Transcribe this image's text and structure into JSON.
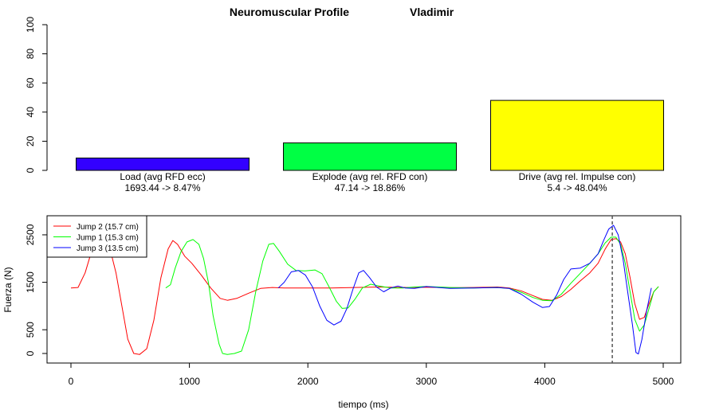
{
  "title": "Neuromuscular Profile",
  "athlete": "Vladimir",
  "chart_data": [
    {
      "type": "bar",
      "categories": [
        "Load (avg RFD ecc)",
        "Explode (avg rel. RFD con)",
        "Drive (avg rel. Impulse con)"
      ],
      "sublabels": [
        "1693.44 -> 8.47%",
        "47.14 -> 18.86%",
        "5.4 -> 48.04%"
      ],
      "values": [
        8.47,
        18.86,
        48.04
      ],
      "colors": [
        "#3300ff",
        "#00ff44",
        "#ffff00"
      ],
      "ylim": [
        0,
        100
      ],
      "yticks": [
        0,
        20,
        40,
        60,
        80,
        100
      ],
      "xlabel": "",
      "ylabel": ""
    },
    {
      "type": "line",
      "xlabel": "tiempo (ms)",
      "ylabel": "Fuerza (N)",
      "xlim": [
        0,
        5000
      ],
      "ylim": [
        0,
        2600
      ],
      "xticks": [
        0,
        1000,
        2000,
        3000,
        4000,
        5000
      ],
      "yticks": [
        0,
        500,
        1500,
        2500
      ],
      "vline_x": 4570,
      "legend_position": "top-left",
      "series": [
        {
          "name": "Jump 2 (15.7 cm)",
          "color": "#ff0000",
          "points": [
            [
              0,
              1380
            ],
            [
              60,
              1390
            ],
            [
              120,
              1700
            ],
            [
              180,
              2200
            ],
            [
              220,
              2500
            ],
            [
              260,
              2550
            ],
            [
              320,
              2300
            ],
            [
              380,
              1700
            ],
            [
              430,
              1000
            ],
            [
              480,
              300
            ],
            [
              530,
              0
            ],
            [
              580,
              -20
            ],
            [
              640,
              100
            ],
            [
              700,
              700
            ],
            [
              760,
              1600
            ],
            [
              820,
              2200
            ],
            [
              860,
              2380
            ],
            [
              900,
              2300
            ],
            [
              960,
              2050
            ],
            [
              1020,
              1900
            ],
            [
              1100,
              1650
            ],
            [
              1180,
              1380
            ],
            [
              1260,
              1160
            ],
            [
              1320,
              1120
            ],
            [
              1400,
              1160
            ],
            [
              1500,
              1270
            ],
            [
              1600,
              1370
            ],
            [
              1700,
              1390
            ],
            [
              1800,
              1380
            ],
            [
              2000,
              1380
            ],
            [
              2200,
              1380
            ],
            [
              2400,
              1390
            ],
            [
              2600,
              1400
            ],
            [
              2800,
              1390
            ],
            [
              3000,
              1395
            ],
            [
              3200,
              1385
            ],
            [
              3400,
              1390
            ],
            [
              3600,
              1400
            ],
            [
              3700,
              1380
            ],
            [
              3800,
              1320
            ],
            [
              3900,
              1220
            ],
            [
              3980,
              1140
            ],
            [
              4060,
              1120
            ],
            [
              4140,
              1200
            ],
            [
              4220,
              1350
            ],
            [
              4300,
              1530
            ],
            [
              4380,
              1700
            ],
            [
              4450,
              1900
            ],
            [
              4510,
              2200
            ],
            [
              4560,
              2400
            ],
            [
              4600,
              2420
            ],
            [
              4640,
              2350
            ],
            [
              4680,
              2100
            ],
            [
              4720,
              1600
            ],
            [
              4760,
              1050
            ],
            [
              4800,
              720
            ],
            [
              4840,
              760
            ],
            [
              4880,
              1050
            ],
            [
              4920,
              1300
            ],
            [
              4960,
              1410
            ]
          ]
        },
        {
          "name": "Jump 1 (15.3 cm)",
          "color": "#00ff00",
          "points": [
            [
              800,
              1380
            ],
            [
              840,
              1450
            ],
            [
              880,
              1800
            ],
            [
              930,
              2150
            ],
            [
              980,
              2350
            ],
            [
              1030,
              2400
            ],
            [
              1080,
              2300
            ],
            [
              1120,
              2000
            ],
            [
              1160,
              1500
            ],
            [
              1200,
              800
            ],
            [
              1250,
              200
            ],
            [
              1280,
              0
            ],
            [
              1320,
              -20
            ],
            [
              1380,
              0
            ],
            [
              1440,
              50
            ],
            [
              1500,
              500
            ],
            [
              1560,
              1300
            ],
            [
              1620,
              1950
            ],
            [
              1670,
              2300
            ],
            [
              1710,
              2320
            ],
            [
              1760,
              2150
            ],
            [
              1830,
              1880
            ],
            [
              1900,
              1750
            ],
            [
              1980,
              1740
            ],
            [
              2060,
              1760
            ],
            [
              2120,
              1680
            ],
            [
              2180,
              1400
            ],
            [
              2240,
              1100
            ],
            [
              2290,
              950
            ],
            [
              2340,
              960
            ],
            [
              2400,
              1150
            ],
            [
              2460,
              1380
            ],
            [
              2530,
              1460
            ],
            [
              2600,
              1420
            ],
            [
              2700,
              1380
            ],
            [
              2800,
              1380
            ],
            [
              2900,
              1400
            ],
            [
              3000,
              1410
            ],
            [
              3200,
              1390
            ],
            [
              3400,
              1380
            ],
            [
              3600,
              1390
            ],
            [
              3700,
              1370
            ],
            [
              3800,
              1290
            ],
            [
              3900,
              1180
            ],
            [
              3980,
              1120
            ],
            [
              4060,
              1110
            ],
            [
              4140,
              1250
            ],
            [
              4220,
              1480
            ],
            [
              4300,
              1690
            ],
            [
              4380,
              1900
            ],
            [
              4450,
              2100
            ],
            [
              4510,
              2330
            ],
            [
              4560,
              2450
            ],
            [
              4600,
              2450
            ],
            [
              4640,
              2300
            ],
            [
              4680,
              1900
            ],
            [
              4720,
              1300
            ],
            [
              4760,
              720
            ],
            [
              4800,
              470
            ],
            [
              4840,
              600
            ],
            [
              4880,
              950
            ],
            [
              4920,
              1300
            ],
            [
              4960,
              1410
            ]
          ]
        },
        {
          "name": "Jump 3 (13.5 cm)",
          "color": "#0000ff",
          "points": [
            [
              1750,
              1380
            ],
            [
              1800,
              1500
            ],
            [
              1860,
              1720
            ],
            [
              1920,
              1750
            ],
            [
              1980,
              1650
            ],
            [
              2040,
              1400
            ],
            [
              2100,
              1000
            ],
            [
              2160,
              700
            ],
            [
              2220,
              600
            ],
            [
              2280,
              680
            ],
            [
              2330,
              950
            ],
            [
              2380,
              1350
            ],
            [
              2430,
              1700
            ],
            [
              2470,
              1750
            ],
            [
              2520,
              1600
            ],
            [
              2580,
              1400
            ],
            [
              2640,
              1300
            ],
            [
              2700,
              1380
            ],
            [
              2760,
              1420
            ],
            [
              2820,
              1380
            ],
            [
              2900,
              1370
            ],
            [
              3000,
              1410
            ],
            [
              3100,
              1390
            ],
            [
              3200,
              1370
            ],
            [
              3400,
              1380
            ],
            [
              3600,
              1390
            ],
            [
              3700,
              1370
            ],
            [
              3800,
              1250
            ],
            [
              3900,
              1080
            ],
            [
              3980,
              970
            ],
            [
              4040,
              990
            ],
            [
              4100,
              1230
            ],
            [
              4160,
              1560
            ],
            [
              4220,
              1780
            ],
            [
              4300,
              1800
            ],
            [
              4380,
              1900
            ],
            [
              4450,
              2100
            ],
            [
              4500,
              2400
            ],
            [
              4540,
              2620
            ],
            [
              4580,
              2700
            ],
            [
              4620,
              2500
            ],
            [
              4660,
              2000
            ],
            [
              4700,
              1300
            ],
            [
              4740,
              600
            ],
            [
              4770,
              20
            ],
            [
              4790,
              -10
            ],
            [
              4820,
              300
            ],
            [
              4860,
              900
            ],
            [
              4900,
              1380
            ]
          ]
        }
      ]
    }
  ]
}
